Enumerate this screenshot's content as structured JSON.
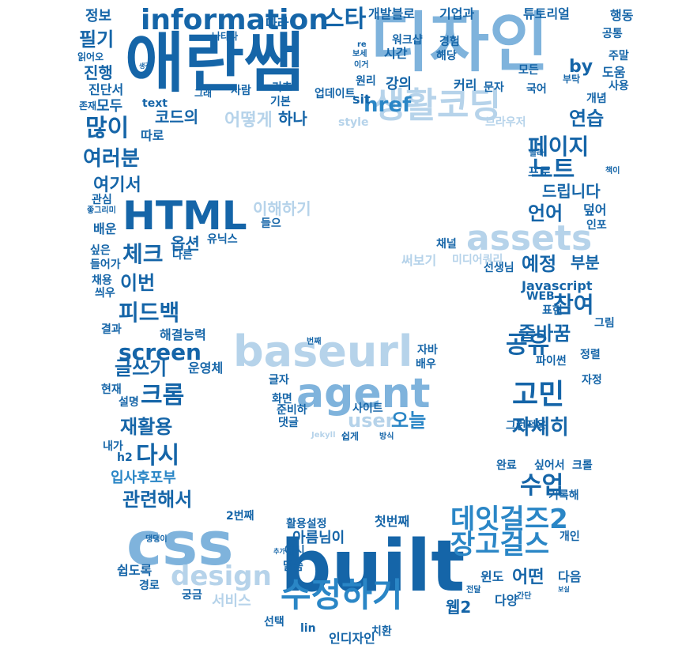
{
  "palette": {
    "dark": "#1565a8",
    "mid": "#2a86c6",
    "light": "#7fb3dc",
    "pale": "#b6d3ea"
  },
  "words": [
    {
      "text": "애란쌤"
    },
    {
      "text": "디자인"
    },
    {
      "text": "built"
    },
    {
      "text": "css"
    },
    {
      "text": "baseurl"
    },
    {
      "text": "agent"
    },
    {
      "text": "HTML"
    },
    {
      "text": "assets"
    },
    {
      "text": "생활코딩"
    },
    {
      "text": "information"
    },
    {
      "text": "수정하기"
    },
    {
      "text": "데잇걸즈2"
    },
    {
      "text": "스타"
    },
    {
      "text": "design"
    },
    {
      "text": "장고걸스"
    },
    {
      "text": "고민"
    },
    {
      "text": "수업"
    },
    {
      "text": "screen"
    },
    {
      "text": "공유"
    },
    {
      "text": "어떻게"
    },
    {
      "text": "하나"
    },
    {
      "text": "href"
    },
    {
      "text": "user"
    },
    {
      "text": "오늘"
    },
    {
      "text": "크롬"
    },
    {
      "text": "다시"
    },
    {
      "text": "자세히"
    },
    {
      "text": "페이지"
    },
    {
      "text": "노트"
    },
    {
      "text": "연습"
    },
    {
      "text": "많이"
    },
    {
      "text": "여러분"
    },
    {
      "text": "체크"
    },
    {
      "text": "이번"
    },
    {
      "text": "피드백"
    },
    {
      "text": "글쓰기"
    },
    {
      "text": "재활용"
    },
    {
      "text": "관련해서"
    },
    {
      "text": "참여"
    },
    {
      "text": "줄바꿈"
    },
    {
      "text": "예정"
    },
    {
      "text": "언어"
    },
    {
      "text": "어떤"
    },
    {
      "text": "필기"
    },
    {
      "text": "진행"
    },
    {
      "text": "모두"
    },
    {
      "text": "여기서"
    },
    {
      "text": "아름님이"
    },
    {
      "text": "이해하기"
    },
    {
      "text": "입사후포부"
    },
    {
      "text": "드립니다"
    },
    {
      "text": "부분"
    },
    {
      "text": "코드의"
    },
    {
      "text": "웹2"
    },
    {
      "text": "서비스"
    },
    {
      "text": "정보"
    },
    {
      "text": "따라"
    },
    {
      "text": "개발블로"
    },
    {
      "text": "기업과"
    },
    {
      "text": "튜토리얼"
    },
    {
      "text": "행동"
    },
    {
      "text": "공통"
    },
    {
      "text": "주말"
    },
    {
      "text": "도움"
    },
    {
      "text": "사용"
    },
    {
      "text": "개념"
    },
    {
      "text": "by"
    },
    {
      "text": "부탁"
    },
    {
      "text": "국어"
    },
    {
      "text": "문자"
    },
    {
      "text": "모든"
    },
    {
      "text": "커리"
    },
    {
      "text": "원리"
    },
    {
      "text": "강의"
    },
    {
      "text": "해당"
    },
    {
      "text": "경험"
    },
    {
      "text": "워크샵"
    },
    {
      "text": "시간"
    },
    {
      "text": "이거"
    },
    {
      "text": "기초"
    },
    {
      "text": "기본"
    },
    {
      "text": "사람"
    },
    {
      "text": "업데이트"
    },
    {
      "text": "그래"
    },
    {
      "text": "sit"
    },
    {
      "text": "text"
    },
    {
      "text": "진단서"
    },
    {
      "text": "존재"
    },
    {
      "text": "생각"
    },
    {
      "text": "읽어오"
    },
    {
      "text": "따로"
    },
    {
      "text": "style"
    },
    {
      "text": "브라우저"
    },
    {
      "text": "골라"
    },
    {
      "text": "책이"
    },
    {
      "text": "프로"
    },
    {
      "text": "덮어"
    },
    {
      "text": "인포"
    },
    {
      "text": "선생님"
    },
    {
      "text": "채널"
    },
    {
      "text": "미디어쿼리"
    },
    {
      "text": "써보기"
    },
    {
      "text": "Javascript"
    },
    {
      "text": "WEB"
    },
    {
      "text": "표현"
    },
    {
      "text": "그림"
    },
    {
      "text": "정렬"
    },
    {
      "text": "자정"
    },
    {
      "text": "파이썬"
    },
    {
      "text": "그런적용"
    },
    {
      "text": "싶어서"
    },
    {
      "text": "크롤"
    },
    {
      "text": "완료"
    },
    {
      "text": "기록해"
    },
    {
      "text": "첫번째"
    },
    {
      "text": "개인"
    },
    {
      "text": "다음"
    },
    {
      "text": "윈도"
    },
    {
      "text": "다양"
    },
    {
      "text": "전달"
    },
    {
      "text": "간단"
    },
    {
      "text": "보실"
    },
    {
      "text": "치환"
    },
    {
      "text": "인디자인"
    },
    {
      "text": "lin"
    },
    {
      "text": "선택"
    },
    {
      "text": "말씀"
    },
    {
      "text": "예시"
    },
    {
      "text": "추가"
    },
    {
      "text": "활용설정"
    },
    {
      "text": "2번째"
    },
    {
      "text": "궁금"
    },
    {
      "text": "쉽도록"
    },
    {
      "text": "경로"
    },
    {
      "text": "댕댕이"
    },
    {
      "text": "h2"
    },
    {
      "text": "내가"
    },
    {
      "text": "설명"
    },
    {
      "text": "현재"
    },
    {
      "text": "결과"
    },
    {
      "text": "해결능력"
    },
    {
      "text": "운영체"
    },
    {
      "text": "씌우"
    },
    {
      "text": "채용"
    },
    {
      "text": "들어가"
    },
    {
      "text": "싶은"
    },
    {
      "text": "다른"
    },
    {
      "text": "옵션"
    },
    {
      "text": "유닉스"
    },
    {
      "text": "들으"
    },
    {
      "text": "배운"
    },
    {
      "text": "관심"
    },
    {
      "text": "좋그리미"
    },
    {
      "text": "번째"
    },
    {
      "text": "자바"
    },
    {
      "text": "배우"
    },
    {
      "text": "글자"
    },
    {
      "text": "화면"
    },
    {
      "text": "준비하"
    },
    {
      "text": "사이트"
    },
    {
      "text": "댓글"
    },
    {
      "text": "쉽게"
    },
    {
      "text": "Jekyll"
    },
    {
      "text": "방식"
    },
    {
      "text": "나타나"
    },
    {
      "text": "re"
    },
    {
      "text": "보세"
    }
  ]
}
